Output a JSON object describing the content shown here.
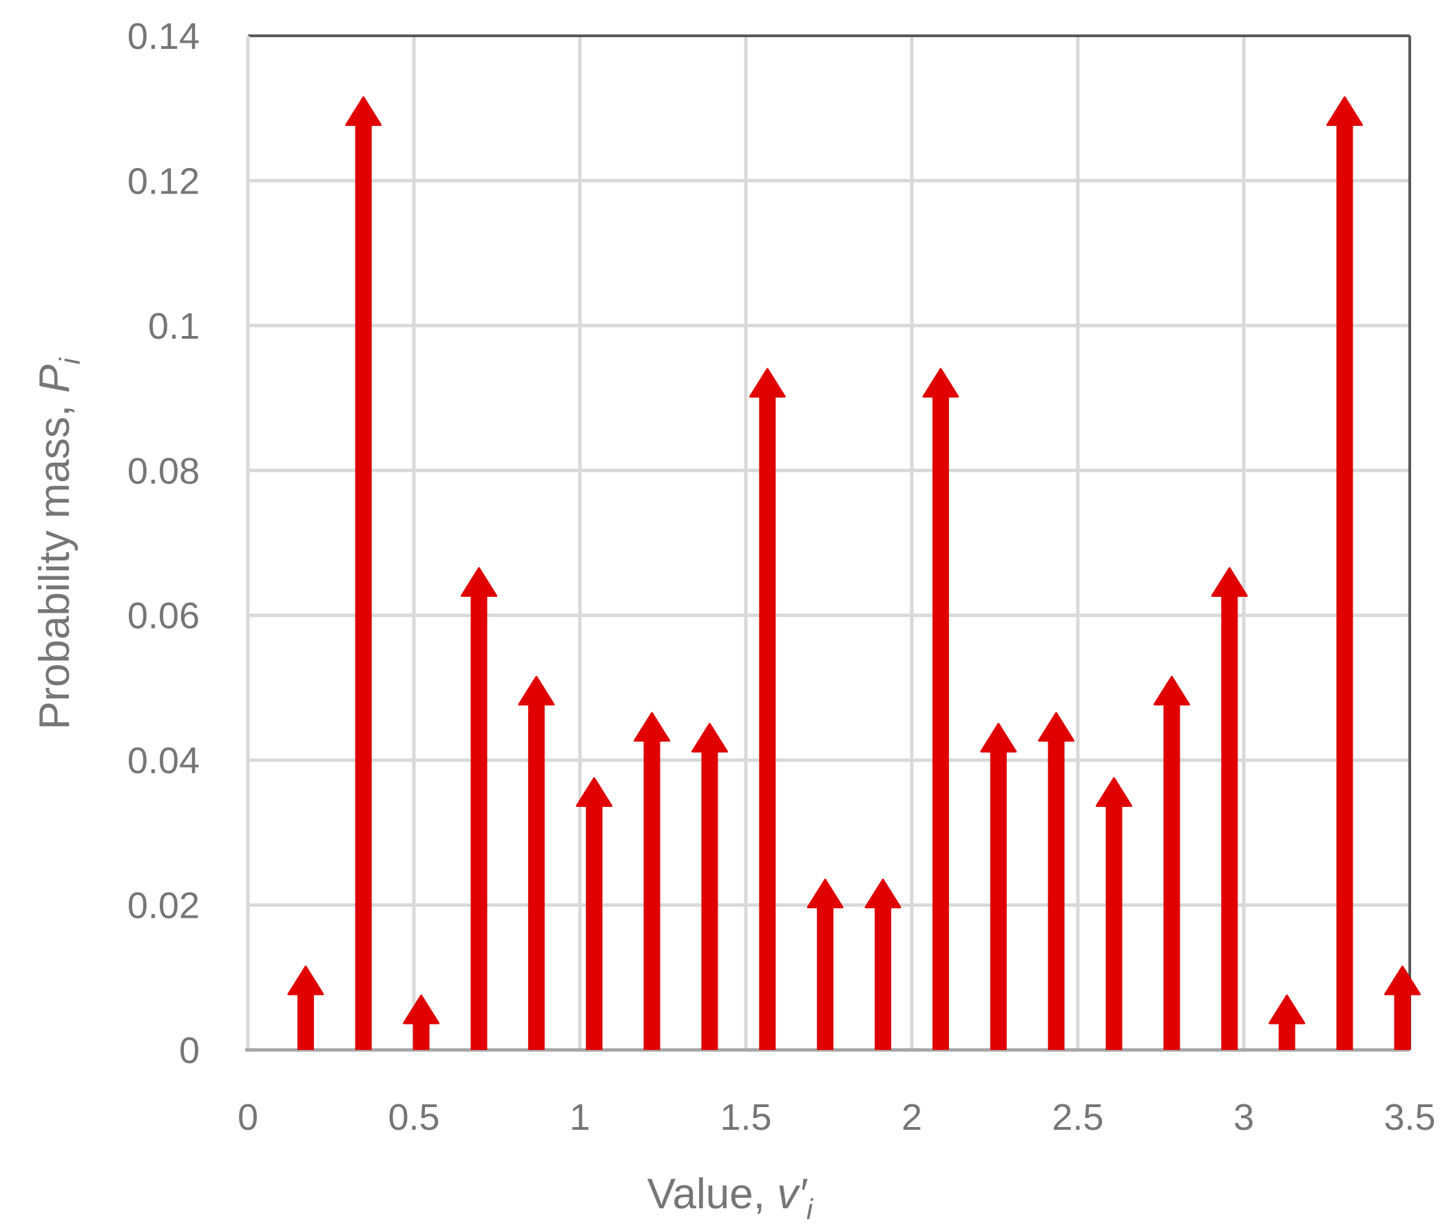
{
  "chart_data": {
    "type": "bar",
    "style": "stem-arrows",
    "xlabel": {
      "prefix": "Value, ",
      "symbol": "v′",
      "subscript": "i"
    },
    "ylabel": {
      "prefix": "Probability mass, ",
      "symbol": "P",
      "subscript": "i"
    },
    "xlim": [
      0,
      3.5
    ],
    "ylim": [
      0,
      0.14
    ],
    "xticks": [
      "0",
      "0.5",
      "1",
      "1.5",
      "2",
      "2.5",
      "3",
      "3.5"
    ],
    "yticks": [
      "0",
      "0.02",
      "0.04",
      "0.06",
      "0.08",
      "0.1",
      "0.12",
      "0.14"
    ],
    "grid": true,
    "colors": {
      "stem": "#E00000",
      "grid": "#D9D9D9",
      "frame": "#595959",
      "text": "#767676"
    },
    "points": [
      {
        "x": 0.174,
        "y": 0.0115
      },
      {
        "x": 0.348,
        "y": 0.1315
      },
      {
        "x": 0.522,
        "y": 0.0075
      },
      {
        "x": 0.696,
        "y": 0.0665
      },
      {
        "x": 0.869,
        "y": 0.0515
      },
      {
        "x": 1.043,
        "y": 0.0375
      },
      {
        "x": 1.217,
        "y": 0.0465
      },
      {
        "x": 1.391,
        "y": 0.045
      },
      {
        "x": 1.565,
        "y": 0.094
      },
      {
        "x": 1.739,
        "y": 0.0235
      },
      {
        "x": 1.913,
        "y": 0.0235
      },
      {
        "x": 2.087,
        "y": 0.094
      },
      {
        "x": 2.261,
        "y": 0.045
      },
      {
        "x": 2.435,
        "y": 0.0465
      },
      {
        "x": 2.609,
        "y": 0.0375
      },
      {
        "x": 2.783,
        "y": 0.0515
      },
      {
        "x": 2.957,
        "y": 0.0665
      },
      {
        "x": 3.13,
        "y": 0.0075
      },
      {
        "x": 3.304,
        "y": 0.1315
      },
      {
        "x": 3.478,
        "y": 0.0115
      }
    ]
  }
}
